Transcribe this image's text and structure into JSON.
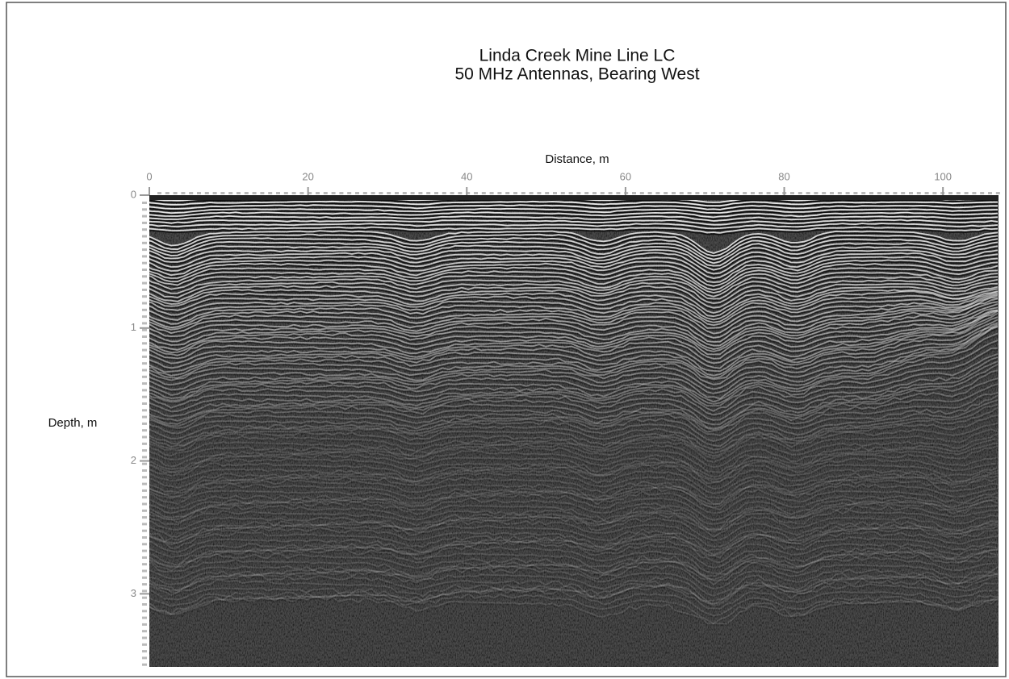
{
  "chart_data": {
    "type": "radargram",
    "title": "Linda Creek Mine Line LC",
    "subtitle": "50 MHz Antennas, Bearing West",
    "xlabel": "Distance, m",
    "ylabel": "Depth, m",
    "xlim": [
      0,
      107
    ],
    "xticks": [
      0,
      20,
      40,
      60,
      80,
      100
    ],
    "ylim": [
      0,
      3.55
    ],
    "yticks": [
      0,
      1,
      2,
      3
    ]
  }
}
